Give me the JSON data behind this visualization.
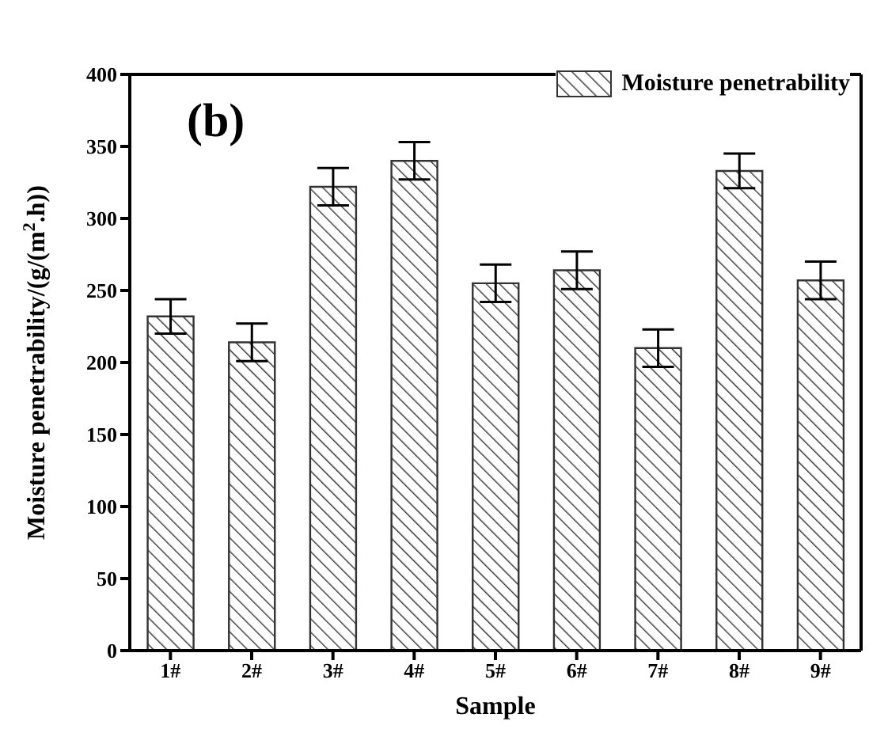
{
  "chart_data": {
    "type": "bar",
    "xlabel": "Sample",
    "ylabel": "Moisture penetrability/(g/(m$^{2}$.h))",
    "annotations": [
      "(b)"
    ],
    "categories": [
      "1#",
      "2#",
      "3#",
      "4#",
      "5#",
      "6#",
      "7#",
      "8#",
      "9#"
    ],
    "series": [
      {
        "name": "Moisture penetrability",
        "color": "#333333",
        "values": [
          232,
          214,
          322,
          340,
          255,
          264,
          210,
          333,
          257
        ],
        "errors": [
          12,
          13,
          13,
          13,
          13,
          13,
          13,
          12,
          13
        ]
      }
    ],
    "ylim": [
      0,
      400
    ],
    "yticks": [
      0,
      50,
      100,
      150,
      200,
      250,
      300,
      350,
      400
    ],
    "grid": false,
    "legend": "top right"
  }
}
